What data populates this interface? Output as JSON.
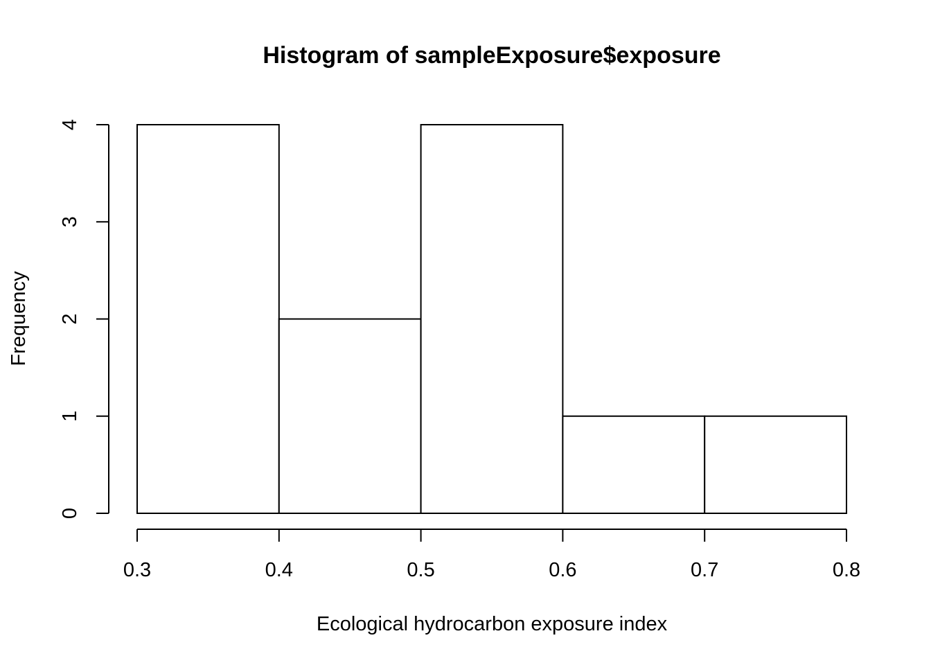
{
  "chart_data": {
    "type": "bar",
    "title": "Histogram of sampleExposure$exposure",
    "xlabel": "Ecological hydrocarbon exposure index",
    "ylabel": "Frequency",
    "bins": [
      {
        "from": 0.3,
        "to": 0.4,
        "count": 4
      },
      {
        "from": 0.4,
        "to": 0.5,
        "count": 2
      },
      {
        "from": 0.5,
        "to": 0.6,
        "count": 4
      },
      {
        "from": 0.6,
        "to": 0.7,
        "count": 1
      },
      {
        "from": 0.7,
        "to": 0.8,
        "count": 1
      }
    ],
    "xlim": [
      0.3,
      0.8
    ],
    "ylim": [
      0,
      4
    ],
    "x_ticks": [
      "0.3",
      "0.4",
      "0.5",
      "0.6",
      "0.7",
      "0.8"
    ],
    "y_ticks": [
      "0",
      "1",
      "2",
      "3",
      "4"
    ],
    "grid": false,
    "legend": "none",
    "colors": {
      "bar_fill": "#ffffff",
      "bar_stroke": "#000000"
    }
  }
}
